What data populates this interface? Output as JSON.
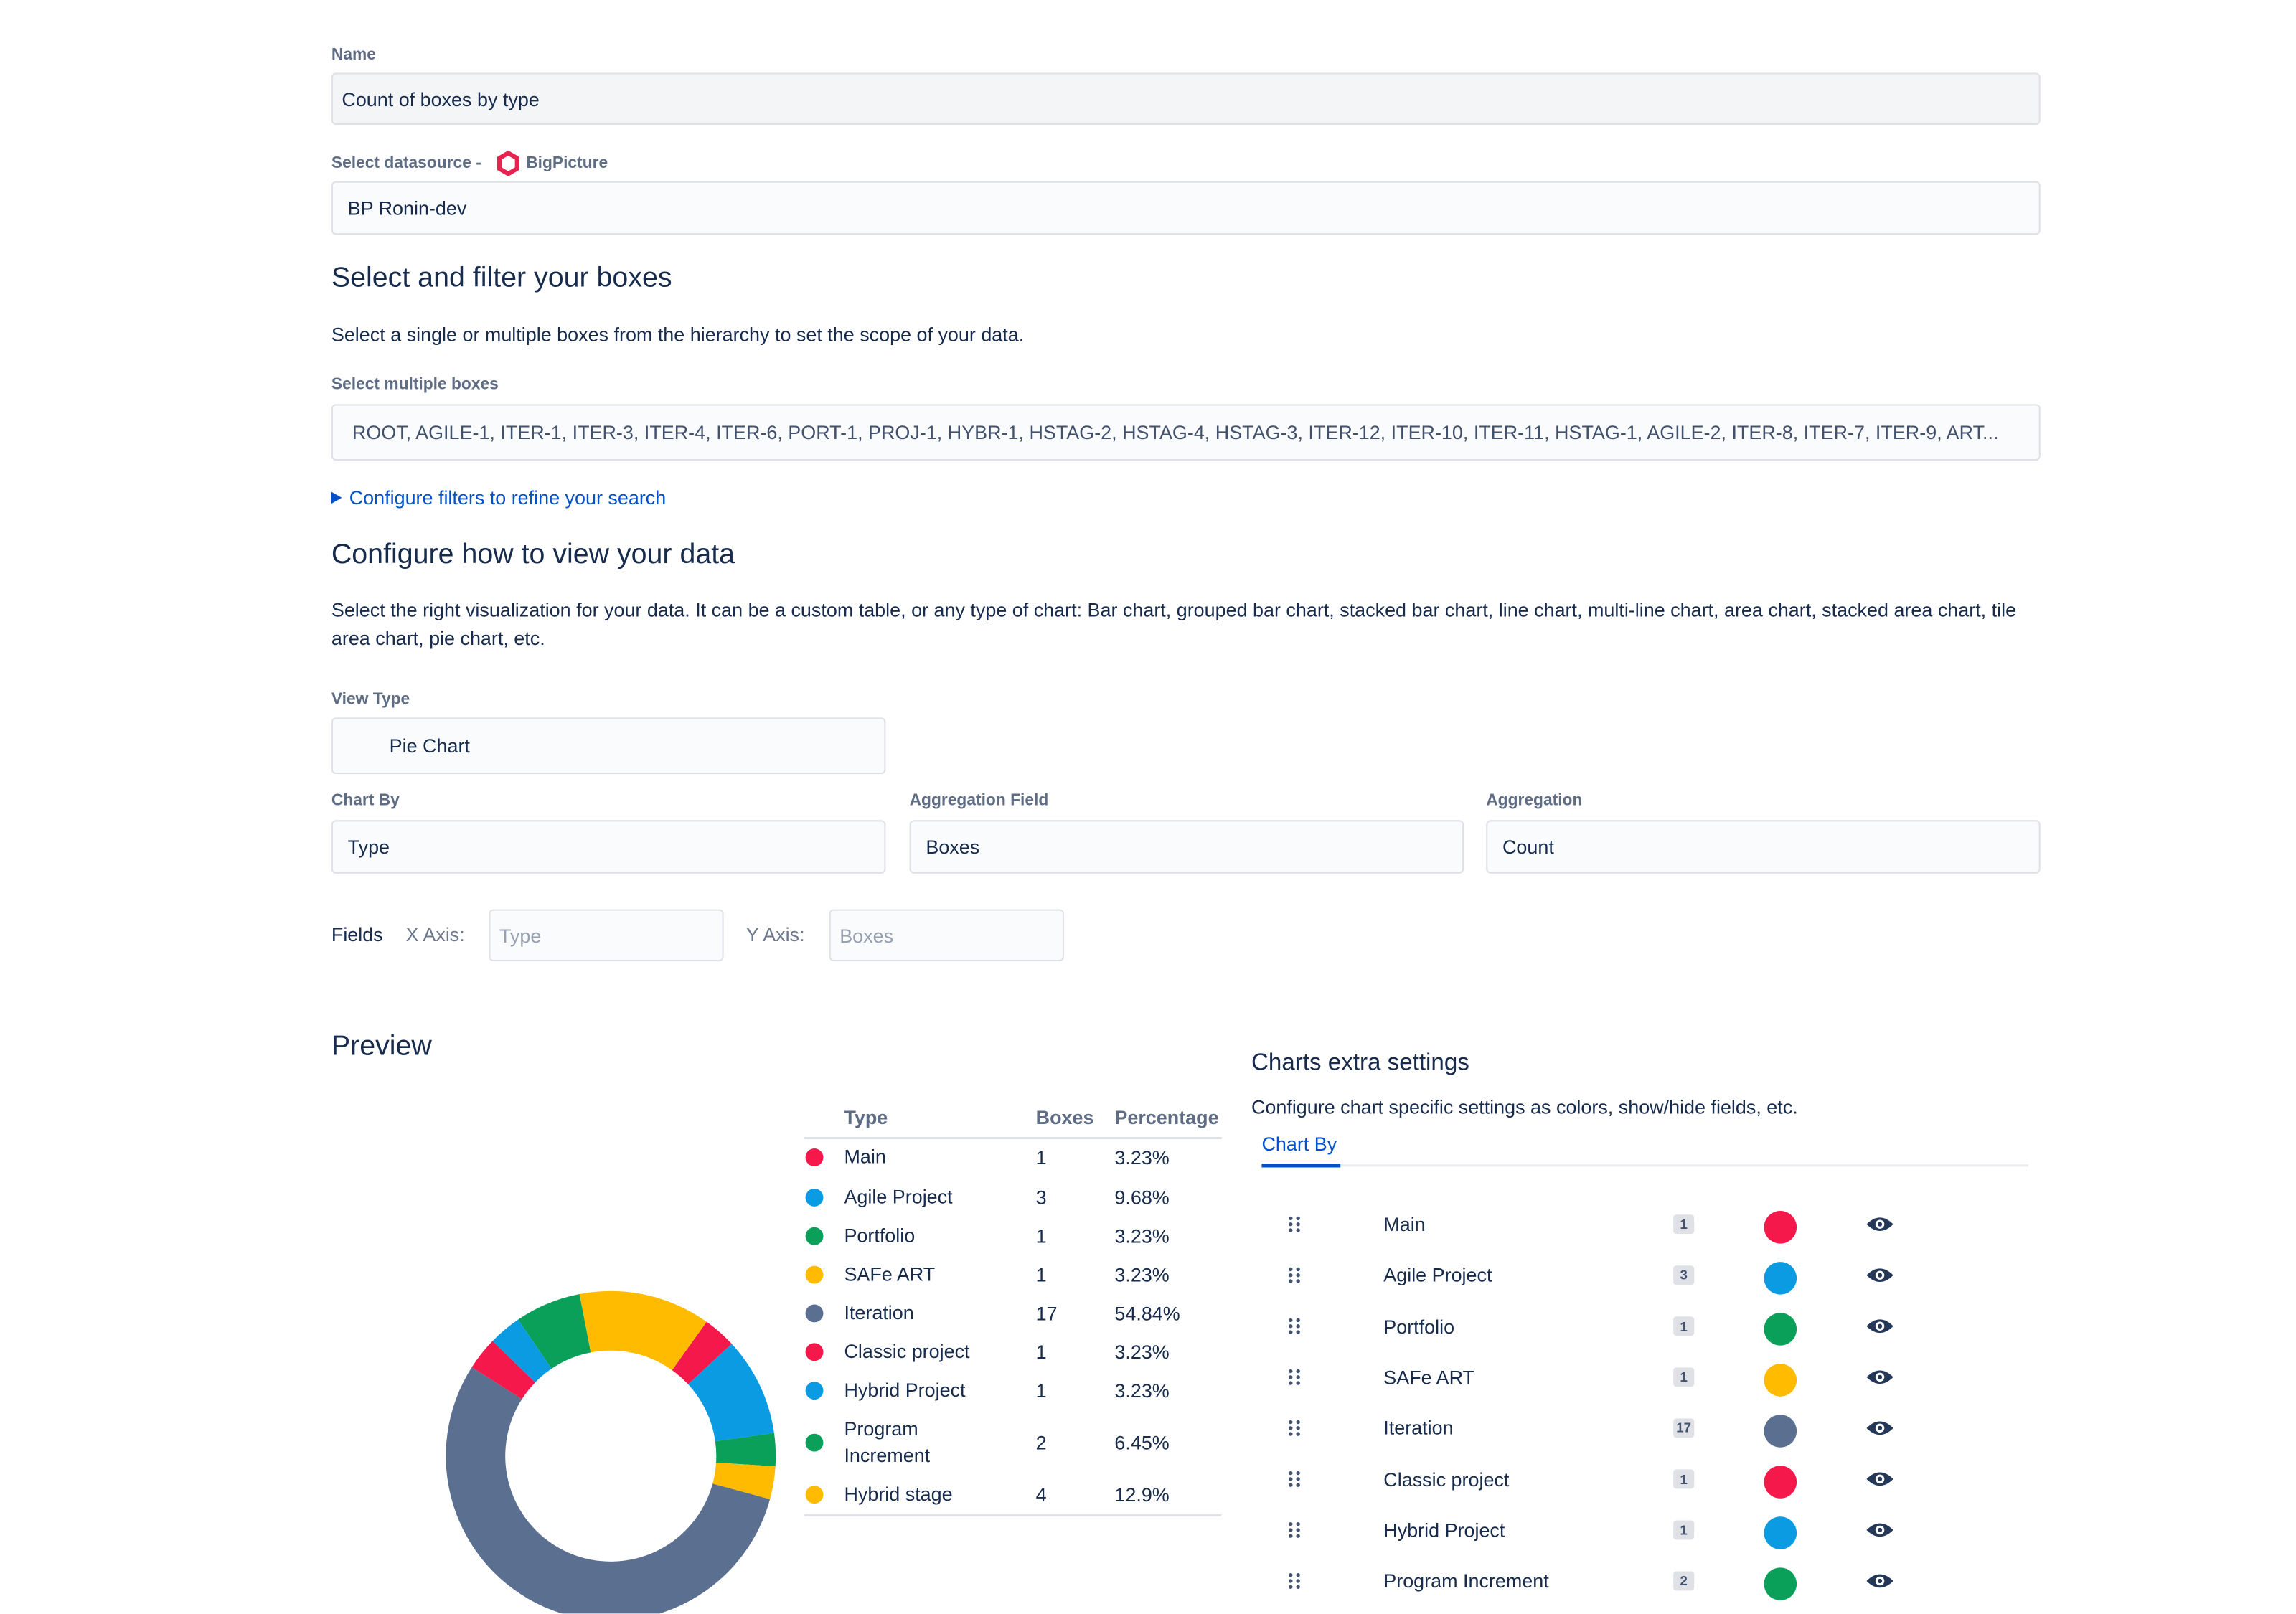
{
  "form": {
    "name_label": "Name",
    "name_value": "Count of boxes by type",
    "datasource_label": "Select datasource -",
    "datasource_brand": "BigPicture",
    "datasource_value": "BP Ronin-dev",
    "boxes_heading": "Select and filter your boxes",
    "boxes_desc": "Select a single or multiple boxes from the hierarchy to set the scope of your data.",
    "boxes_label": "Select multiple boxes",
    "boxes_value": "ROOT, AGILE-1, ITER-1, ITER-3, ITER-4, ITER-6, PORT-1, PROJ-1, HYBR-1, HSTAG-2, HSTAG-4, HSTAG-3, ITER-12, ITER-10, ITER-11, HSTAG-1, AGILE-2, ITER-8, ITER-7, ITER-9, ART...",
    "filters_link": "Configure filters to refine your search",
    "view_heading": "Configure how to view your data",
    "view_desc": "Select the right visualization for your data. It can be a custom table, or any type of chart: Bar chart, grouped bar chart, stacked bar chart, line chart, multi-line chart, area chart, stacked area chart, tile area chart, pie chart, etc.",
    "view_type_label": "View Type",
    "view_type_value": "Pie Chart",
    "chart_by_label": "Chart By",
    "chart_by_value": "Type",
    "agg_field_label": "Aggregation Field",
    "agg_field_value": "Boxes",
    "agg_label": "Aggregation",
    "agg_value": "Count",
    "fields_label": "Fields",
    "x_axis_label": "X Axis:",
    "x_axis_placeholder": "Type",
    "y_axis_label": "Y Axis:",
    "y_axis_placeholder": "Boxes"
  },
  "preview": {
    "title": "Preview",
    "columns": [
      "Type",
      "Boxes",
      "Percentage"
    ],
    "rows": [
      {
        "type": "Main",
        "boxes": 1,
        "percentage": "3.23%",
        "color": "#f5184a"
      },
      {
        "type": "Agile Project",
        "boxes": 3,
        "percentage": "9.68%",
        "color": "#0b9be3"
      },
      {
        "type": "Portfolio",
        "boxes": 1,
        "percentage": "3.23%",
        "color": "#0aa05a"
      },
      {
        "type": "SAFe ART",
        "boxes": 1,
        "percentage": "3.23%",
        "color": "#ffbb00"
      },
      {
        "type": "Iteration",
        "boxes": 17,
        "percentage": "54.84%",
        "color": "#5b7090"
      },
      {
        "type": "Classic project",
        "boxes": 1,
        "percentage": "3.23%",
        "color": "#f5184a"
      },
      {
        "type": "Hybrid Project",
        "boxes": 1,
        "percentage": "3.23%",
        "color": "#0b9be3"
      },
      {
        "type": "Program Increment",
        "boxes": 2,
        "percentage": "6.45%",
        "color": "#0aa05a"
      },
      {
        "type": "Hybrid stage",
        "boxes": 4,
        "percentage": "12.9%",
        "color": "#ffbb00"
      }
    ]
  },
  "settings": {
    "title": "Charts extra settings",
    "desc": "Configure chart specific settings as colors, show/hide fields, etc.",
    "tab": "Chart By"
  }
}
